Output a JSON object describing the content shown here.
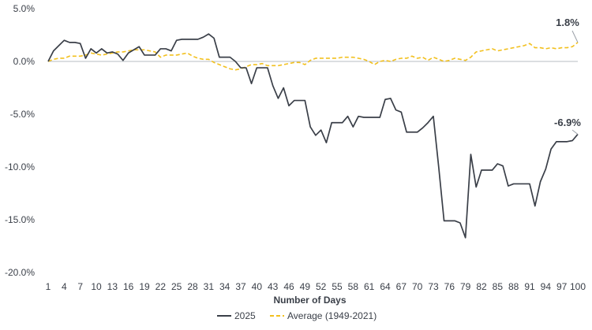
{
  "chart_data": {
    "type": "line",
    "title": "",
    "xlabel": "Number of Days",
    "ylabel": "",
    "ylim": [
      -20,
      5
    ],
    "xlim": [
      1,
      100
    ],
    "grid": false,
    "legend_position": "bottom-center",
    "y_ticks": [
      "5.0%",
      "0.0%",
      "-5.0%",
      "-10.0%",
      "-15.0%",
      "-20.0%"
    ],
    "y_tick_values": [
      5,
      0,
      -5,
      -10,
      -15,
      -20
    ],
    "x_ticks": [
      1,
      4,
      7,
      10,
      13,
      16,
      19,
      22,
      25,
      28,
      31,
      34,
      37,
      40,
      43,
      46,
      49,
      52,
      55,
      58,
      61,
      64,
      67,
      70,
      73,
      76,
      79,
      82,
      85,
      88,
      91,
      94,
      97,
      100
    ],
    "zero_line_color": "#b7bcc3",
    "series": [
      {
        "name": "2025",
        "color": "#3a3f48",
        "style": "solid",
        "end_label": "-6.9%",
        "values": [
          0.0,
          1.0,
          1.5,
          2.0,
          1.8,
          1.8,
          1.7,
          0.3,
          1.2,
          0.8,
          1.2,
          0.8,
          0.9,
          0.7,
          0.1,
          0.8,
          1.1,
          1.4,
          0.6,
          0.6,
          0.6,
          1.2,
          1.2,
          1.0,
          2.0,
          2.1,
          2.1,
          2.1,
          2.1,
          2.3,
          2.6,
          2.2,
          0.4,
          0.4,
          0.4,
          0.0,
          -0.6,
          -0.6,
          -2.1,
          -0.6,
          -0.6,
          -0.6,
          -2.3,
          -3.5,
          -2.5,
          -4.2,
          -3.7,
          -3.7,
          -3.7,
          -6.2,
          -7.0,
          -6.5,
          -7.7,
          -5.8,
          -5.8,
          -5.8,
          -5.2,
          -6.2,
          -5.2,
          -5.3,
          -5.3,
          -5.3,
          -5.3,
          -3.6,
          -3.5,
          -4.6,
          -4.8,
          -6.7,
          -6.7,
          -6.7,
          -6.3,
          -5.8,
          -5.2,
          -10.0,
          -15.1,
          -15.1,
          -15.1,
          -15.3,
          -16.7,
          -8.8,
          -11.9,
          -10.3,
          -10.3,
          -10.3,
          -9.7,
          -9.9,
          -11.8,
          -11.6,
          -11.6,
          -11.6,
          -11.6,
          -13.7,
          -11.4,
          -10.2,
          -8.3,
          -7.6,
          -7.6,
          -7.6,
          -7.5,
          -6.9
        ]
      },
      {
        "name": "Average (1949-2021)",
        "color": "#f2c01e",
        "style": "dashed",
        "end_label": "1.8%",
        "values": [
          0.0,
          0.2,
          0.3,
          0.3,
          0.5,
          0.5,
          0.5,
          0.6,
          0.8,
          0.7,
          0.6,
          0.7,
          0.8,
          0.9,
          0.9,
          1.0,
          1.1,
          1.1,
          1.1,
          1.0,
          0.9,
          0.4,
          0.6,
          0.6,
          0.6,
          0.7,
          0.8,
          0.5,
          0.3,
          0.2,
          0.2,
          -0.1,
          -0.3,
          -0.5,
          -0.7,
          -0.8,
          -0.7,
          -0.5,
          -0.3,
          -0.3,
          -0.2,
          -0.4,
          -0.4,
          -0.4,
          -0.3,
          -0.2,
          -0.1,
          -0.1,
          -0.3,
          0.1,
          0.3,
          0.3,
          0.3,
          0.3,
          0.3,
          0.4,
          0.4,
          0.4,
          0.3,
          0.2,
          0.0,
          -0.3,
          0.0,
          0.1,
          0.0,
          0.2,
          0.3,
          0.3,
          0.5,
          0.3,
          0.4,
          0.1,
          0.4,
          0.2,
          0.0,
          0.1,
          0.3,
          0.2,
          0.1,
          0.4,
          0.9,
          1.0,
          1.1,
          1.2,
          1.0,
          1.1,
          1.2,
          1.3,
          1.4,
          1.5,
          1.7,
          1.3,
          1.3,
          1.2,
          1.3,
          1.2,
          1.3,
          1.3,
          1.4,
          1.8
        ]
      }
    ]
  }
}
